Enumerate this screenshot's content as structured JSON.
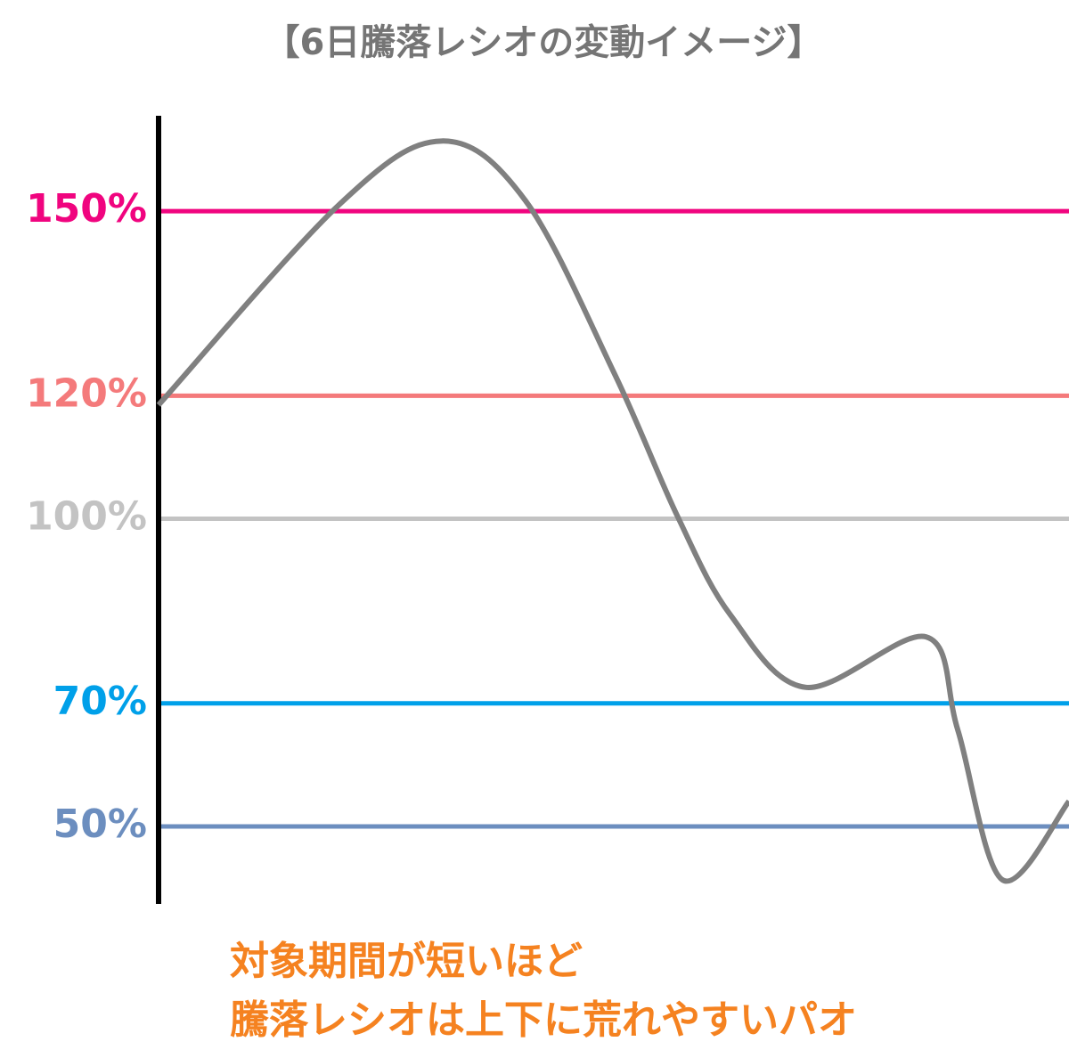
{
  "chart_data": {
    "type": "line",
    "title": "【6日騰落レシオの変動イメージ】",
    "annotations": [
      "対象期間が短いほど",
      "騰落レシオは上下に荒れやすいパオ"
    ],
    "x": [
      0,
      19.8,
      31.1,
      40.3,
      50.1,
      57,
      62.8,
      71.1,
      84.3,
      87.8,
      92.7,
      100
    ],
    "series": [
      {
        "color": "#808080",
        "values": [
          118.5,
          151,
          161.4,
          151.7,
          123.5,
          100.4,
          84.4,
          72.6,
          80.8,
          65.6,
          41.3,
          54.1
        ]
      }
    ],
    "xlim": [
      0,
      100
    ],
    "ylim": [
      37.4,
      165.5
    ],
    "yticks": [
      {
        "value": 150,
        "label": "150%"
      },
      {
        "value": 120,
        "label": "120%"
      },
      {
        "value": 100,
        "label": "100%"
      },
      {
        "value": 70,
        "label": "70%"
      },
      {
        "value": 50,
        "label": "50%"
      }
    ],
    "ytick_colors": [
      "#f0047f",
      "#f47a7b",
      "#c3c3c3",
      "#00a0e9",
      "#6c8ebf"
    ],
    "annotation_color": "#f58220",
    "title_color": "#757575"
  }
}
